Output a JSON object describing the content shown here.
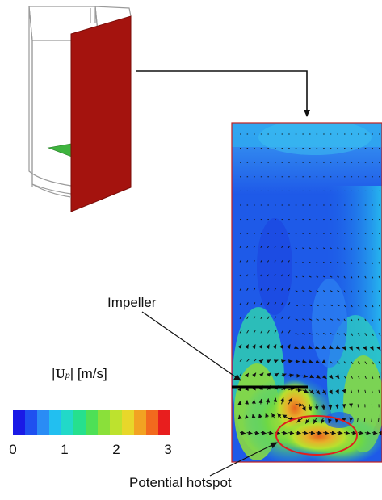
{
  "labels": {
    "impeller": "Impeller",
    "hotspot": "Potential hotspot"
  },
  "colorbar": {
    "title_bar_left": "|",
    "title_symbol": "U",
    "title_subscript": "p",
    "title_bar_right": "|",
    "title_unit": "[m/s]",
    "ticks": [
      "0",
      "1",
      "2",
      "3"
    ],
    "min": 0,
    "max": 3,
    "colors": [
      "#1a1ae6",
      "#1f50f0",
      "#2a8cf5",
      "#22bff0",
      "#22d9c8",
      "#26e08e",
      "#4ee056",
      "#8ae03a",
      "#bde22e",
      "#e8d72a",
      "#f2a322",
      "#f26a1e",
      "#e81e1e"
    ]
  },
  "colors": {
    "cut_plane": "#a4130e",
    "impeller_plane": "#3fb43f",
    "hotspot_ring": "#e01e1e",
    "arrow": "#111111",
    "tank_outline": "#9a9a9a"
  }
}
